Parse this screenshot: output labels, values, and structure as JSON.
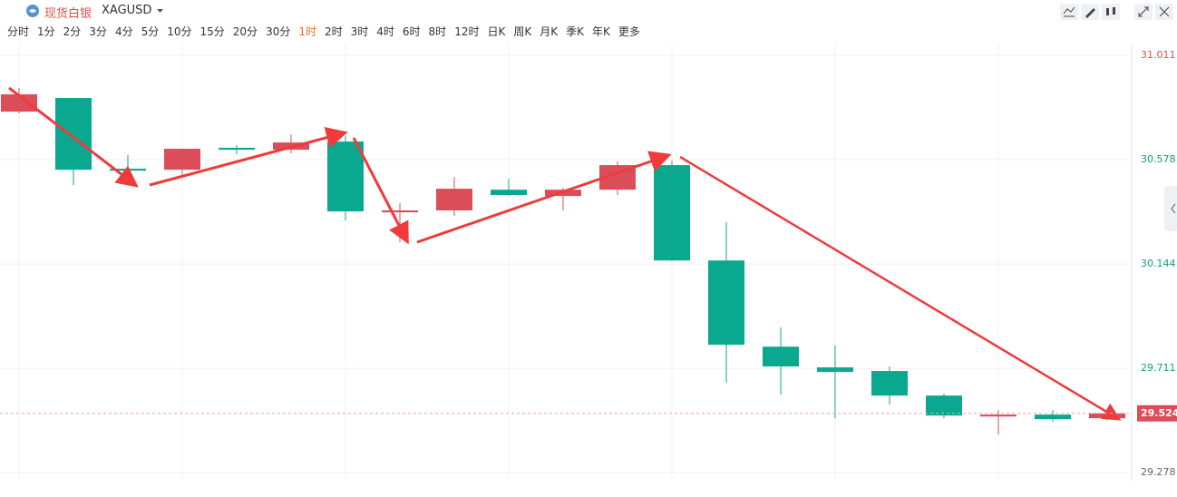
{
  "header": {
    "name": "现货白银",
    "symbol": "XAGUSD"
  },
  "toolbar": {
    "intervals": [
      "分时",
      "1分",
      "2分",
      "3分",
      "4分",
      "5分",
      "10分",
      "15分",
      "20分",
      "30分",
      "1时",
      "2时",
      "3时",
      "4时",
      "6时",
      "8时",
      "12时",
      "日K",
      "周K",
      "月K",
      "季K",
      "年K",
      "更多"
    ]
  },
  "chart_data": {
    "type": "candlestick",
    "categories": [
      null,
      null,
      null,
      null,
      null,
      null,
      null,
      null,
      null,
      null,
      null,
      null,
      null,
      null,
      null,
      null,
      null,
      null,
      null,
      null,
      null
    ],
    "open": [
      30.777,
      30.834,
      30.54,
      30.536,
      30.627,
      30.619,
      30.653,
      30.359,
      30.367,
      30.453,
      30.427,
      30.453,
      30.555,
      30.159,
      29.801,
      29.715,
      29.7,
      29.598,
      29.511,
      29.519,
      29.504
    ],
    "high": [
      30.875,
      30.834,
      30.597,
      30.623,
      30.638,
      30.683,
      30.676,
      30.397,
      30.506,
      30.498,
      30.461,
      30.57,
      30.574,
      30.318,
      29.881,
      29.805,
      29.719,
      29.606,
      29.538,
      29.538,
      29.528
    ],
    "low": [
      30.77,
      30.472,
      30.525,
      30.502,
      30.6,
      30.604,
      30.325,
      30.235,
      30.344,
      30.427,
      30.367,
      30.431,
      30.156,
      29.651,
      29.602,
      29.504,
      29.56,
      29.504,
      29.436,
      29.489,
      29.496
    ],
    "close": [
      30.849,
      30.536,
      30.532,
      30.623,
      30.619,
      30.649,
      30.363,
      30.367,
      30.457,
      30.431,
      30.453,
      30.555,
      30.159,
      29.809,
      29.719,
      29.696,
      29.598,
      29.515,
      29.519,
      29.5,
      29.524
    ],
    "up_color": "#dc4d5a",
    "down_color": "#0aa88e",
    "ylim": [
      29.252,
      31.06
    ],
    "yticks": [
      29.278,
      29.711,
      30.144,
      30.578,
      31.011
    ],
    "last_price": 29.524,
    "grid": true
  }
}
